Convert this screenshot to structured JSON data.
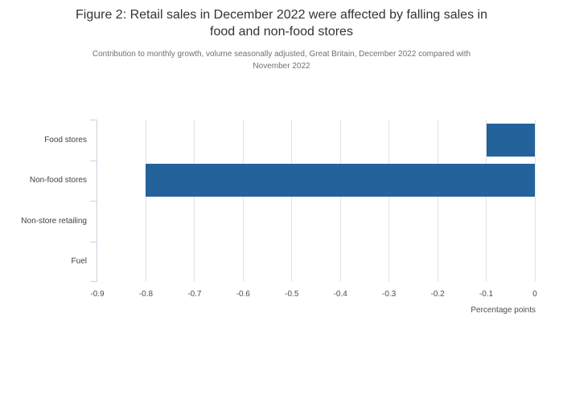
{
  "header": {
    "title_lines": [
      "Figure 2: Retail sales in December 2022 were affected by falling sales in",
      "food and non-food stores"
    ],
    "subtitle_lines": [
      "Contribution to monthly growth, volume seasonally adjusted, Great Britain, December 2022 compared with",
      "November 2022"
    ]
  },
  "chart_data": {
    "type": "bar",
    "orientation": "horizontal",
    "title": "Figure 2: Retail sales in December 2022 were affected by falling sales in food and non-food stores",
    "subtitle": "Contribution to monthly growth, volume seasonally adjusted, Great Britain, December 2022 compared with November 2022",
    "categories": [
      "Food stores",
      "Non-food stores",
      "Non-store retailing",
      "Fuel"
    ],
    "values": [
      -0.1,
      -0.8,
      0,
      0
    ],
    "xlabel": "Percentage points",
    "ylabel": "",
    "xlim": [
      -0.9,
      0
    ],
    "xticks": [
      -0.9,
      -0.8,
      -0.7,
      -0.6,
      -0.5,
      -0.4,
      -0.3,
      -0.2,
      -0.1,
      0
    ],
    "xtick_labels": [
      "-0.9",
      "-0.8",
      "-0.7",
      "-0.6",
      "-0.5",
      "-0.4",
      "-0.3",
      "-0.2",
      "-0.1",
      "0"
    ],
    "grid": true,
    "legend": false,
    "colors": {
      "bar": "#23629b",
      "gridline": "#e3e3e3",
      "axis_line": "#c9d2e0",
      "title_text": "#333333",
      "subtitle_text": "#707071",
      "tick_text": "#4d4d4d",
      "category_text": "#414042"
    }
  }
}
